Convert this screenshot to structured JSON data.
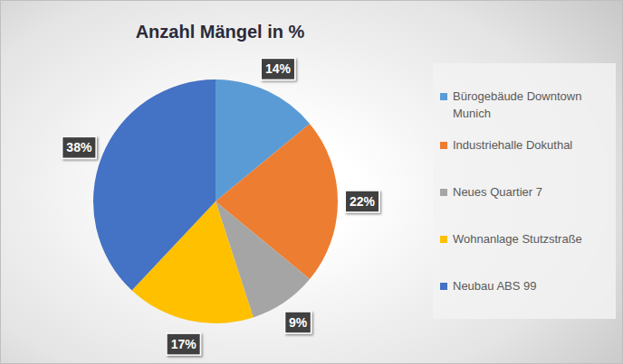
{
  "chart_data": {
    "type": "pie",
    "title": "Anzahl Mängel in %",
    "categories": [
      "Bürogebäude Downtown Munich",
      "Industriehalle Dokuthal",
      "Neues Quartier 7",
      "Wohnanlage Stutzstraße",
      "Neubau ABS 99"
    ],
    "values": [
      14,
      22,
      9,
      17,
      38
    ],
    "value_labels": [
      "14%",
      "22%",
      "9%",
      "17%",
      "38%"
    ],
    "colors": [
      "#5b9bd5",
      "#ed7d31",
      "#a5a5a5",
      "#ffc000",
      "#4472c4"
    ],
    "data_labels": true,
    "legend": "right"
  }
}
